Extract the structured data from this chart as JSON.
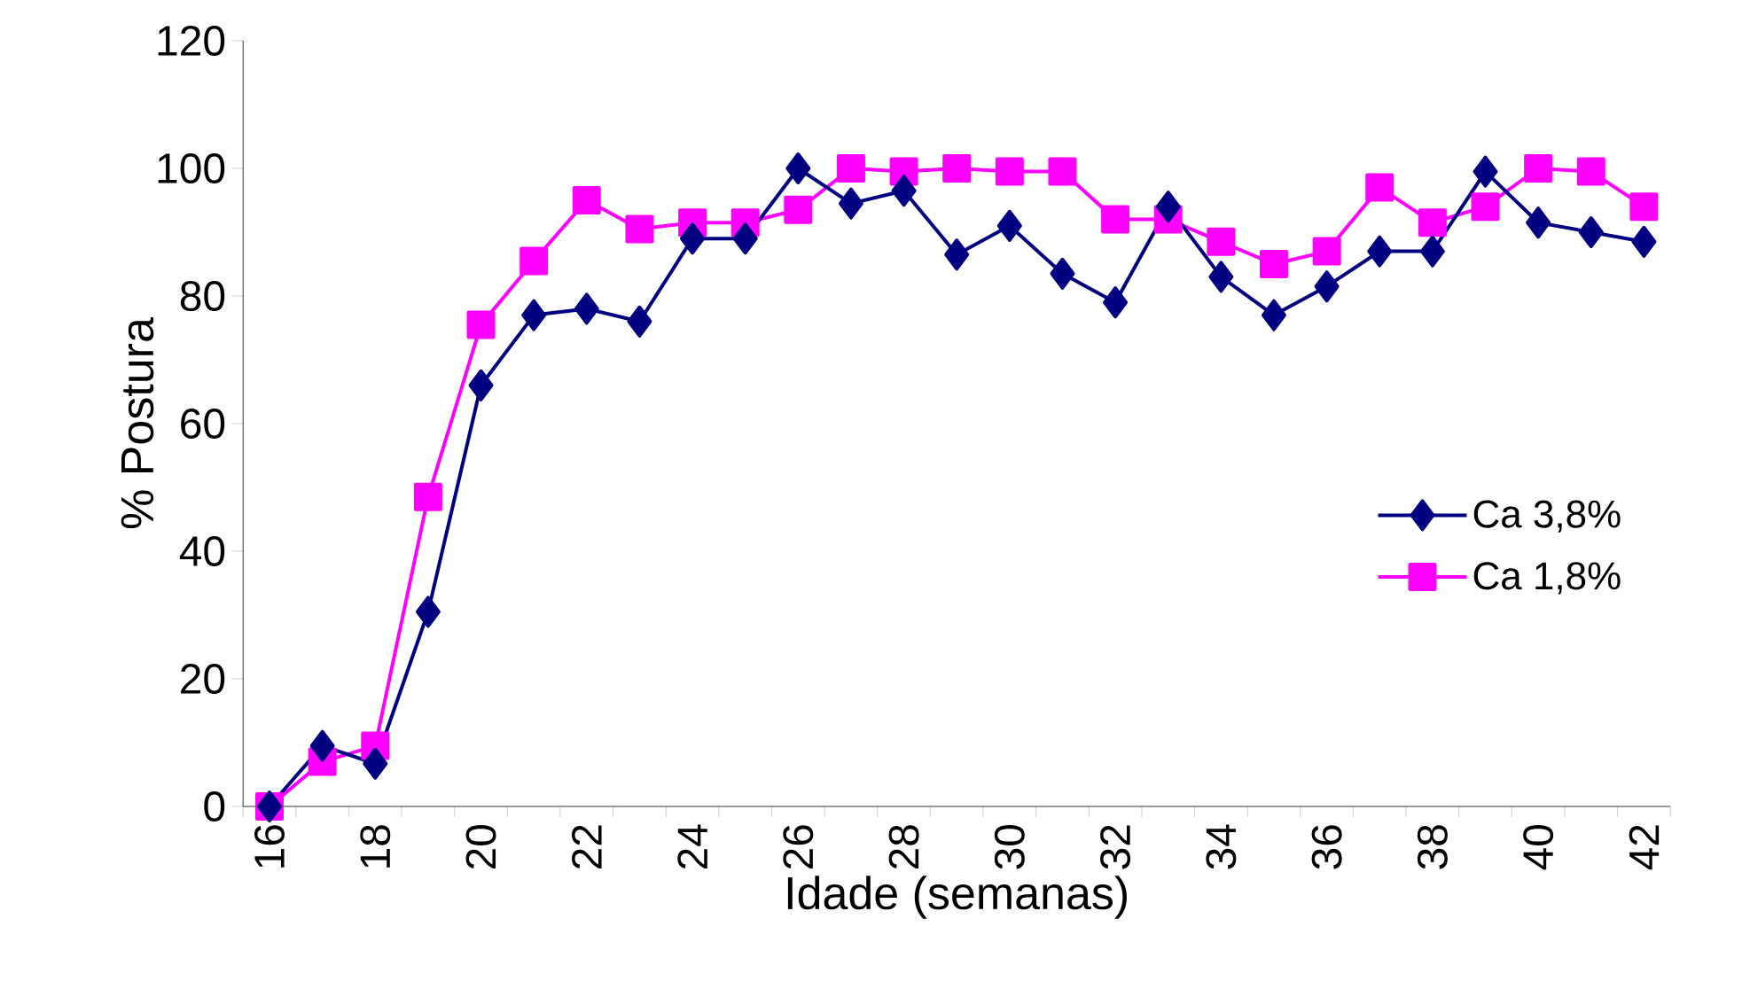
{
  "chart_data": {
    "type": "line",
    "xlabel": "Idade (semanas)",
    "ylabel": "% Postura",
    "categories": [
      "16",
      null,
      "18",
      null,
      "20",
      null,
      "22",
      null,
      "24",
      null,
      "26",
      null,
      "28",
      null,
      "30",
      null,
      "32",
      null,
      "34",
      null,
      "36",
      null,
      "38",
      null,
      "40",
      null,
      "42"
    ],
    "series": [
      {
        "name": "Ca 3,8%",
        "color": "#000080",
        "marker": "diamond",
        "values": [
          0,
          9.5,
          6.7,
          30.5,
          66,
          77,
          78,
          76,
          89,
          89,
          100,
          94.5,
          96.5,
          86.5,
          91,
          83.5,
          79,
          94,
          83,
          77,
          81.5,
          87,
          87,
          99.5,
          91.5,
          90,
          88.5
        ]
      },
      {
        "name": "Ca 1,8%",
        "color": "#ff00ff",
        "marker": "square",
        "values": [
          0,
          7,
          9.5,
          48.5,
          75.5,
          85.5,
          95,
          90.5,
          91.5,
          91.5,
          93.5,
          100,
          99.5,
          100,
          99.5,
          99.5,
          92,
          92,
          88.5,
          85,
          87,
          97,
          91.5,
          94,
          100,
          99.5,
          94
        ]
      }
    ],
    "ylim": [
      0,
      120
    ],
    "yticks": [
      0,
      20,
      40,
      60,
      80,
      100,
      120
    ],
    "grid": false,
    "legend": "right"
  }
}
